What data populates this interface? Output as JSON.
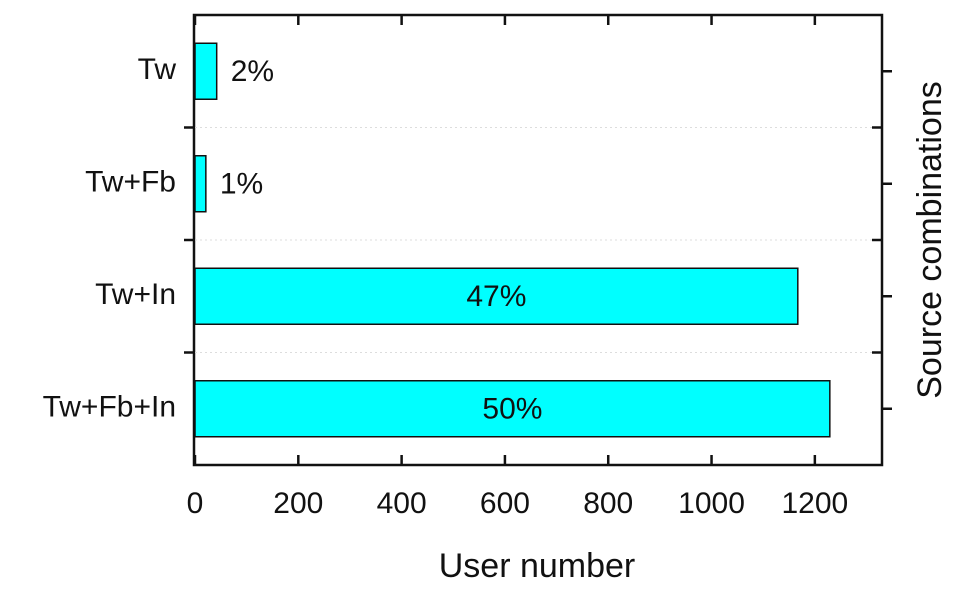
{
  "chart_data": {
    "type": "bar",
    "orientation": "horizontal",
    "x_label": "User number",
    "y_label": "Source combinations",
    "categories": [
      "Tw",
      "Tw+Fb",
      "Tw+In",
      "Tw+Fb+In"
    ],
    "values": [
      42,
      21,
      1167,
      1229
    ],
    "value_labels": [
      "2%",
      "1%",
      "47%",
      "50%"
    ],
    "color": "#00ffff",
    "xlim": [
      0,
      1330
    ],
    "xticks": [
      0,
      200,
      400,
      600,
      800,
      1000,
      1200
    ]
  }
}
